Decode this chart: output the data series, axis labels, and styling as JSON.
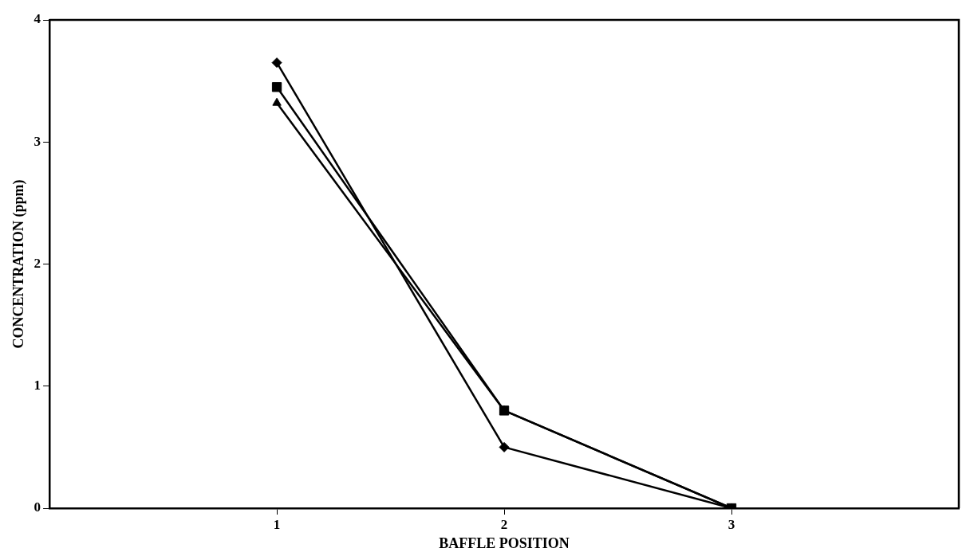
{
  "chart_data": {
    "type": "line",
    "xlabel": "BAFFLE POSITION",
    "ylabel": "CONCENTRATION (ppm)",
    "x": [
      1,
      2,
      3
    ],
    "xlim": [
      0,
      4
    ],
    "xticks": [
      1,
      2,
      3
    ],
    "ylim": [
      0,
      4
    ],
    "yticks": [
      0,
      1,
      2,
      3,
      4
    ],
    "grid": false,
    "legend": false,
    "line_style": "solid",
    "series": [
      {
        "color": "#000000",
        "marker": "diamond",
        "values": [
          3.65,
          0.5,
          0
        ]
      },
      {
        "color": "#000000",
        "marker": "square",
        "values": [
          3.45,
          0.8,
          0
        ]
      },
      {
        "color": "#000000",
        "marker": "triangle",
        "values": [
          3.32,
          0.8,
          0
        ]
      }
    ]
  }
}
